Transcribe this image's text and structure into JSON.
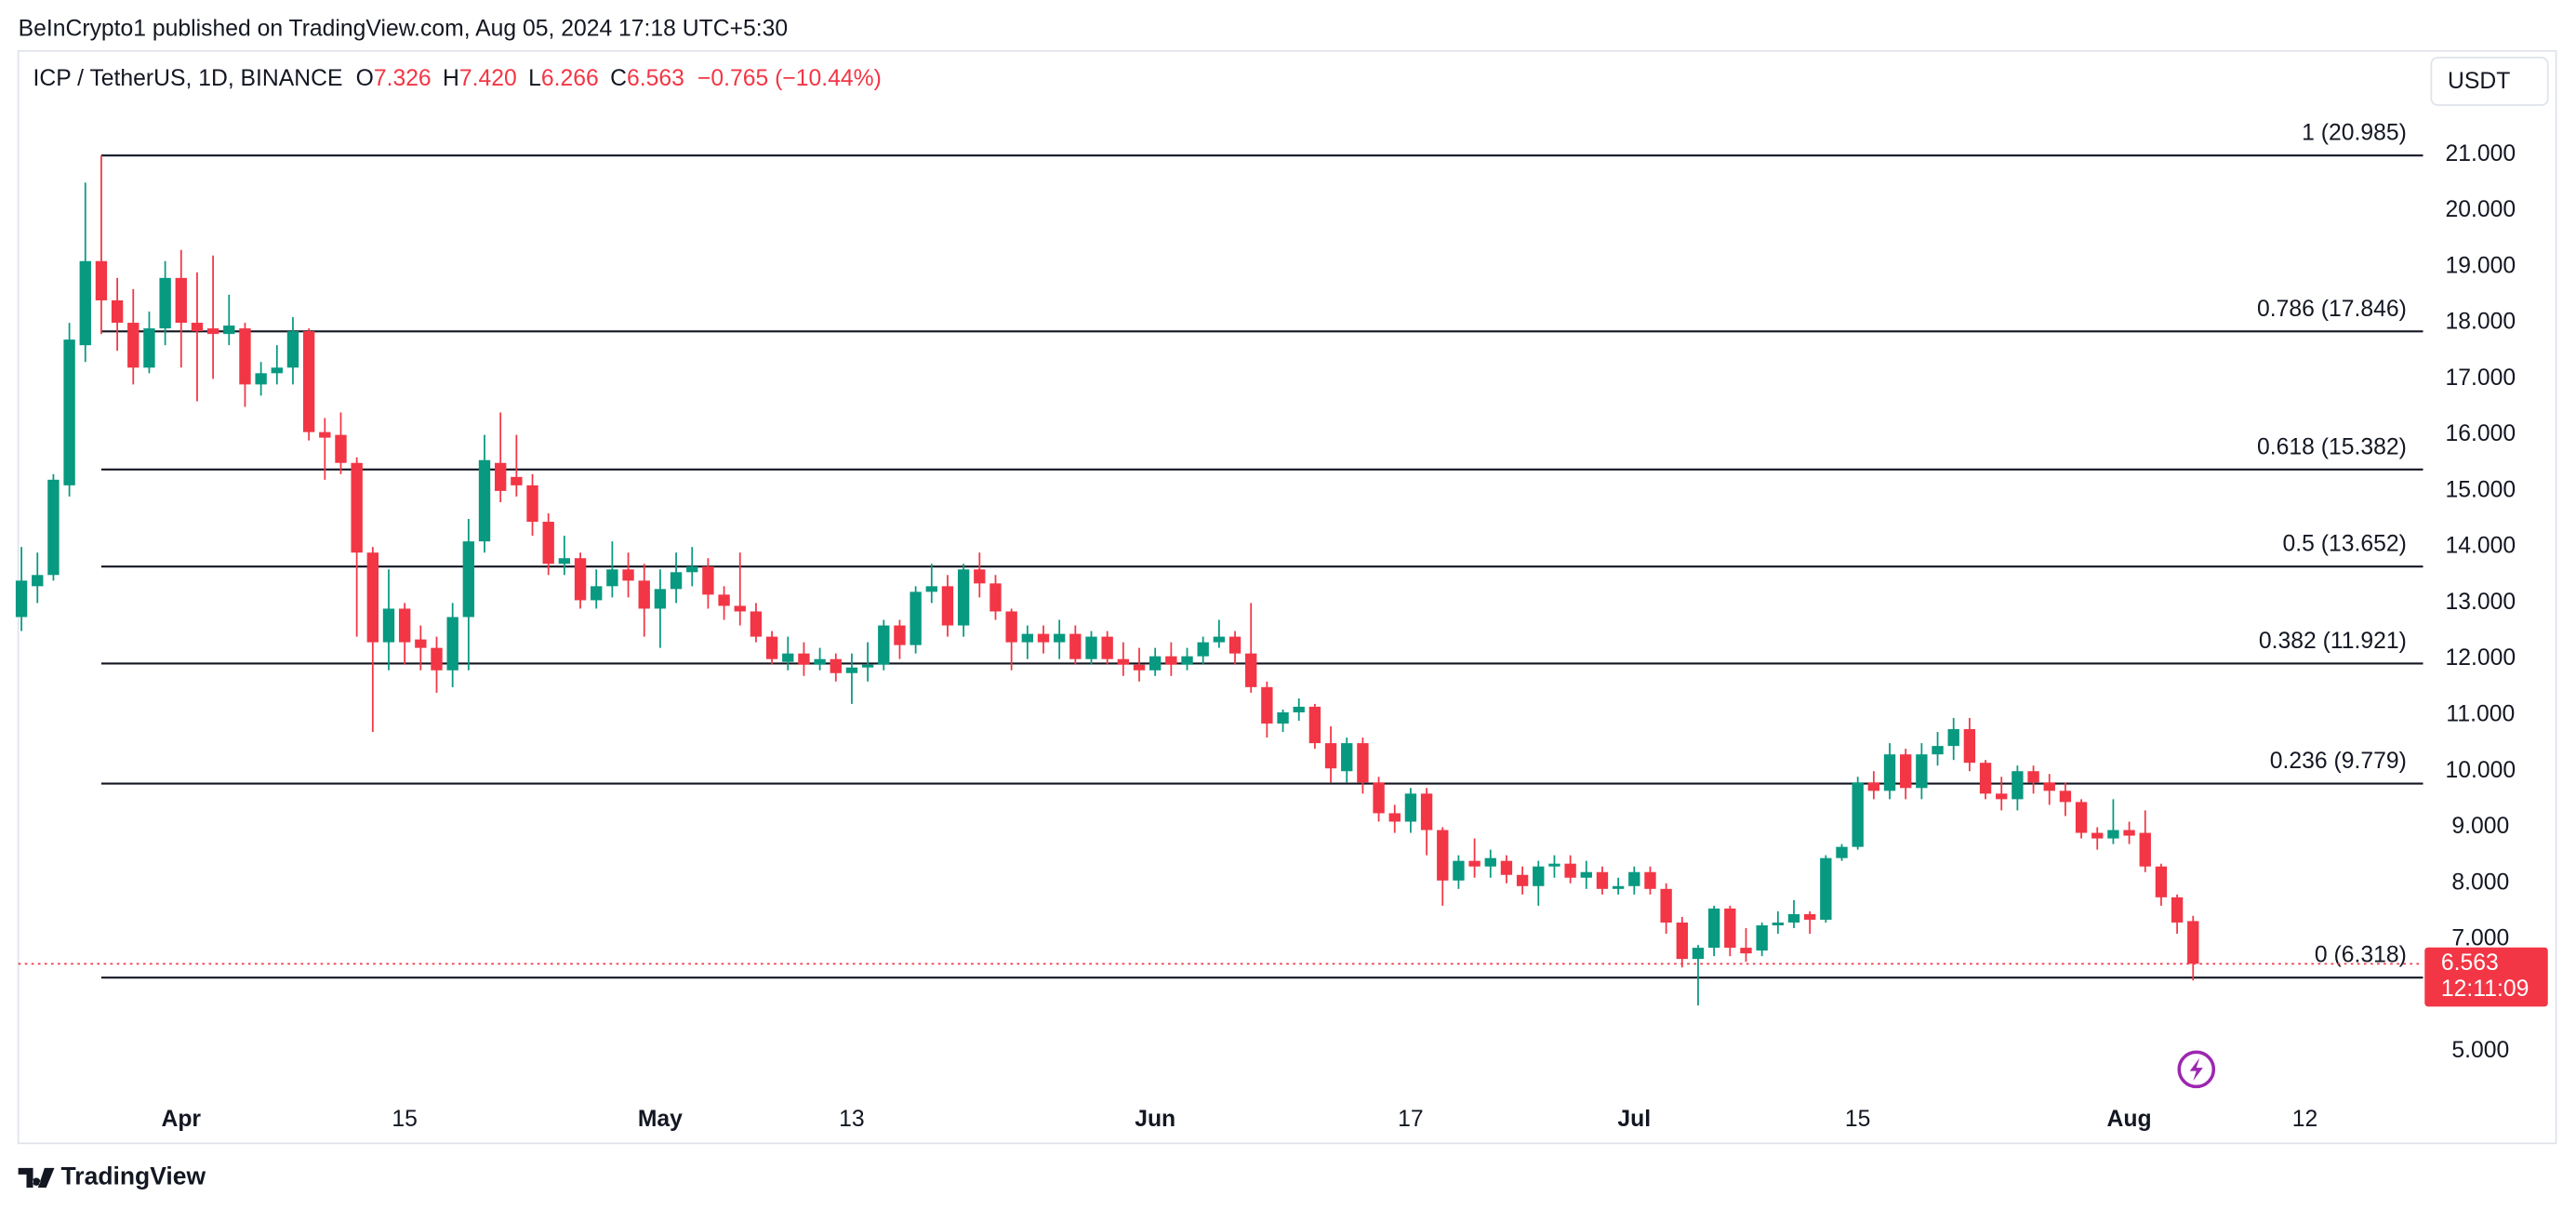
{
  "header": "BeInCrypto1 published on TradingView.com, Aug 05, 2024 17:18 UTC+5:30",
  "footer": "TradingView",
  "chart_data": {
    "type": "candlestick",
    "legend": {
      "symbol": "ICP / TetherUS, 1D, BINANCE",
      "fields": [
        {
          "key": "O",
          "value": "7.326"
        },
        {
          "key": "H",
          "value": "7.420"
        },
        {
          "key": "L",
          "value": "6.266"
        },
        {
          "key": "C",
          "value": "6.563"
        }
      ],
      "change": "−0.765 (−10.44%)"
    },
    "currency": "USDT",
    "up_color": "#089981",
    "down_color": "#f23645",
    "open": [
      12.75,
      13.3,
      13.5,
      15.1,
      17.6,
      19.1,
      18.4,
      18.0,
      17.2,
      17.9,
      18.8,
      18.0,
      17.9,
      17.8,
      17.9,
      16.9,
      17.1,
      17.2,
      17.85,
      16.05,
      16.0,
      15.5,
      13.9,
      12.3,
      12.9,
      12.35,
      12.2,
      11.8,
      12.75,
      14.1,
      15.5,
      15.25,
      15.1,
      14.45,
      13.7,
      13.8,
      13.05,
      13.3,
      13.6,
      13.4,
      12.9,
      13.25,
      13.55,
      13.65,
      13.15,
      12.95,
      12.85,
      12.4,
      11.95,
      12.1,
      11.9,
      12.0,
      11.75,
      11.85,
      11.9,
      12.6,
      12.25,
      13.2,
      13.3,
      12.6,
      13.6,
      13.35,
      12.85,
      12.3,
      12.45,
      12.3,
      12.45,
      12.0,
      12.4,
      12.0,
      11.9,
      11.8,
      12.05,
      11.9,
      12.05,
      12.3,
      12.4,
      12.1,
      11.5,
      10.85,
      11.05,
      11.15,
      10.5,
      10.0,
      10.5,
      9.8,
      9.25,
      9.1,
      9.6,
      8.95,
      8.05,
      8.4,
      8.3,
      8.4,
      8.15,
      7.95,
      8.3,
      8.35,
      8.1,
      8.2,
      7.9,
      7.95,
      8.2,
      7.9,
      7.3,
      6.65,
      6.85,
      7.55,
      6.85,
      6.8,
      7.25,
      7.3,
      7.45,
      7.35,
      8.45,
      8.65,
      9.8,
      9.65,
      10.3,
      9.7,
      10.3,
      10.45,
      10.75,
      10.15,
      9.6,
      9.5,
      10.0,
      9.8,
      9.65,
      9.45,
      8.9,
      8.8,
      8.95,
      8.9,
      8.3,
      7.75,
      7.326
    ],
    "high": [
      14.0,
      13.9,
      15.3,
      18.0,
      20.5,
      20.985,
      18.8,
      18.6,
      18.2,
      19.1,
      19.3,
      18.9,
      19.2,
      18.5,
      18.0,
      17.3,
      17.6,
      18.1,
      17.9,
      16.3,
      16.4,
      15.6,
      14.0,
      13.6,
      13.0,
      12.6,
      12.4,
      13.0,
      14.5,
      16.0,
      16.4,
      16.0,
      15.3,
      14.6,
      14.2,
      13.9,
      13.6,
      14.1,
      13.9,
      13.7,
      13.6,
      13.9,
      14.0,
      13.8,
      13.3,
      13.9,
      13.0,
      12.5,
      12.4,
      12.3,
      12.2,
      12.1,
      12.1,
      12.3,
      12.7,
      12.7,
      13.3,
      13.7,
      13.5,
      13.7,
      13.9,
      13.5,
      12.9,
      12.6,
      12.6,
      12.7,
      12.6,
      12.5,
      12.5,
      12.3,
      12.2,
      12.2,
      12.3,
      12.2,
      12.4,
      12.7,
      12.5,
      13.0,
      11.6,
      11.1,
      11.3,
      11.2,
      10.8,
      10.6,
      10.6,
      9.9,
      9.4,
      9.7,
      9.7,
      9.0,
      8.5,
      8.8,
      8.6,
      8.5,
      8.3,
      8.4,
      8.5,
      8.5,
      8.4,
      8.3,
      8.1,
      8.3,
      8.3,
      8.0,
      7.4,
      6.9,
      7.6,
      7.6,
      7.2,
      7.3,
      7.5,
      7.7,
      7.5,
      8.5,
      8.7,
      9.9,
      10.0,
      10.5,
      10.4,
      10.5,
      10.7,
      10.95,
      10.95,
      10.2,
      9.9,
      10.1,
      10.1,
      9.95,
      9.8,
      9.5,
      9.0,
      9.5,
      9.1,
      9.3,
      8.35,
      7.8,
      7.42
    ],
    "low": [
      12.5,
      13.0,
      13.4,
      14.9,
      17.3,
      17.8,
      17.5,
      16.9,
      17.1,
      17.6,
      17.2,
      16.6,
      17.0,
      17.6,
      16.5,
      16.7,
      16.9,
      16.9,
      15.9,
      15.2,
      15.3,
      12.4,
      10.7,
      11.8,
      11.9,
      11.8,
      11.4,
      11.5,
      11.8,
      13.9,
      14.8,
      14.9,
      14.2,
      13.5,
      13.5,
      12.9,
      12.9,
      13.1,
      13.1,
      12.4,
      12.2,
      13.0,
      13.3,
      12.9,
      12.7,
      12.6,
      12.3,
      11.9,
      11.8,
      11.7,
      11.8,
      11.6,
      11.2,
      11.6,
      11.8,
      12.0,
      12.1,
      13.0,
      12.4,
      12.4,
      13.1,
      12.7,
      11.8,
      12.0,
      12.1,
      12.0,
      11.9,
      11.9,
      11.9,
      11.7,
      11.6,
      11.7,
      11.7,
      11.8,
      11.9,
      12.2,
      11.9,
      11.4,
      10.6,
      10.7,
      10.9,
      10.4,
      9.8,
      9.8,
      9.6,
      9.1,
      8.9,
      8.9,
      8.5,
      7.6,
      7.9,
      8.1,
      8.1,
      8.0,
      7.8,
      7.6,
      8.1,
      8.0,
      7.9,
      7.8,
      7.8,
      7.8,
      7.8,
      7.1,
      6.5,
      5.82,
      6.7,
      6.7,
      6.6,
      6.7,
      7.1,
      7.2,
      7.1,
      7.3,
      8.4,
      8.6,
      9.5,
      9.5,
      9.5,
      9.5,
      10.1,
      10.2,
      10.0,
      9.5,
      9.3,
      9.3,
      9.6,
      9.4,
      9.2,
      8.8,
      8.6,
      8.7,
      8.7,
      8.2,
      7.6,
      7.1,
      6.266
    ],
    "close": [
      13.4,
      13.5,
      15.2,
      17.7,
      19.1,
      18.4,
      18.0,
      17.2,
      17.9,
      18.8,
      18.0,
      17.85,
      17.8,
      17.95,
      16.9,
      17.1,
      17.2,
      17.85,
      16.05,
      15.95,
      15.5,
      13.9,
      12.3,
      12.9,
      12.3,
      12.2,
      11.8,
      12.75,
      14.1,
      15.55,
      15.0,
      15.1,
      14.45,
      13.7,
      13.8,
      13.05,
      13.3,
      13.6,
      13.4,
      12.9,
      13.25,
      13.55,
      13.65,
      13.15,
      12.95,
      12.85,
      12.4,
      12.0,
      12.1,
      11.9,
      12.0,
      11.75,
      11.85,
      11.9,
      12.6,
      12.25,
      13.2,
      13.3,
      12.6,
      13.6,
      13.35,
      12.85,
      12.3,
      12.45,
      12.3,
      12.45,
      12.0,
      12.4,
      12.0,
      11.9,
      11.8,
      12.05,
      11.9,
      12.05,
      12.3,
      12.4,
      12.1,
      11.5,
      10.85,
      11.05,
      11.15,
      10.5,
      10.05,
      10.5,
      9.8,
      9.25,
      9.1,
      9.6,
      8.95,
      8.05,
      8.4,
      8.3,
      8.45,
      8.15,
      7.95,
      8.3,
      8.35,
      8.1,
      8.2,
      7.9,
      7.95,
      8.2,
      7.9,
      7.3,
      6.65,
      6.85,
      7.55,
      6.85,
      6.75,
      7.25,
      7.3,
      7.45,
      7.35,
      8.45,
      8.65,
      9.8,
      9.65,
      10.3,
      9.7,
      10.3,
      10.45,
      10.75,
      10.15,
      9.6,
      9.5,
      10.0,
      9.8,
      9.65,
      9.45,
      8.9,
      8.8,
      8.95,
      8.85,
      8.3,
      7.75,
      7.3,
      6.563
    ],
    "fib_levels": [
      {
        "label": "1 (20.985)",
        "value": 20.985
      },
      {
        "label": "0.786 (17.846)",
        "value": 17.846
      },
      {
        "label": "0.618 (15.382)",
        "value": 15.382
      },
      {
        "label": "0.5 (13.652)",
        "value": 13.652
      },
      {
        "label": "0.382 (11.921)",
        "value": 11.921
      },
      {
        "label": "0.236 (9.779)",
        "value": 9.779
      },
      {
        "label": "0 (6.318)",
        "value": 6.318
      }
    ],
    "last_price": {
      "value": 6.563,
      "label": "6.563",
      "countdown": "12:11:09"
    },
    "xlim": [
      -0.2,
      150.4
    ],
    "xticks": [
      {
        "value": 10,
        "label": "Apr"
      },
      {
        "value": 24,
        "label": "15"
      },
      {
        "value": 40,
        "label": "May"
      },
      {
        "value": 52,
        "label": "13"
      },
      {
        "value": 71,
        "label": "Jun"
      },
      {
        "value": 87,
        "label": "17"
      },
      {
        "value": 101,
        "label": "Jul"
      },
      {
        "value": 115,
        "label": "15"
      },
      {
        "value": 132,
        "label": "Aug"
      },
      {
        "value": 143,
        "label": "12"
      }
    ],
    "ylim": [
      4.27,
      22.85
    ],
    "yticks": [
      {
        "value": 21,
        "label": "21.000"
      },
      {
        "value": 20,
        "label": "20.000"
      },
      {
        "value": 19,
        "label": "19.000"
      },
      {
        "value": 18,
        "label": "18.000"
      },
      {
        "value": 17,
        "label": "17.000"
      },
      {
        "value": 16,
        "label": "16.000"
      },
      {
        "value": 15,
        "label": "15.000"
      },
      {
        "value": 14,
        "label": "14.000"
      },
      {
        "value": 13,
        "label": "13.000"
      },
      {
        "value": 12,
        "label": "12.000"
      },
      {
        "value": 11,
        "label": "11.000"
      },
      {
        "value": 10,
        "label": "10.000"
      },
      {
        "value": 9,
        "label": "9.000"
      },
      {
        "value": 8,
        "label": "8.000"
      },
      {
        "value": 7,
        "label": "7.000"
      },
      {
        "value": 5,
        "label": "5.000"
      }
    ]
  }
}
